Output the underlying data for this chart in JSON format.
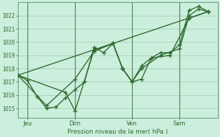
{
  "bg_color": "#cceedd",
  "plot_bg_color": "#cceedd",
  "grid_color": "#99ccaa",
  "line_color": "#2d6a2d",
  "ylim": [
    1014.3,
    1023.0
  ],
  "xlim": [
    0.0,
    10.5
  ],
  "xtick_labels": [
    "Jeu",
    "Dim",
    "Ven",
    "Sam"
  ],
  "xtick_positions": [
    0.5,
    3.0,
    6.0,
    8.5
  ],
  "ytick_labels": [
    "1015",
    "1016",
    "1017",
    "1018",
    "1019",
    "1020",
    "1021",
    "1022"
  ],
  "ytick_values": [
    1015,
    1016,
    1017,
    1018,
    1019,
    1020,
    1021,
    1022
  ],
  "xlabel": "Pression niveau de la mer( hPa )",
  "series": [
    {
      "x": [
        0.0,
        0.5,
        1.0,
        1.5,
        2.0,
        2.5,
        3.0,
        3.5,
        4.0,
        4.5,
        5.0,
        5.5,
        6.0,
        6.5,
        7.0,
        7.5,
        8.0,
        8.5,
        9.0,
        9.5,
        10.0
      ],
      "y": [
        1017.5,
        1017.1,
        1015.9,
        1015.0,
        1015.1,
        1015.8,
        1016.4,
        1017.0,
        1019.6,
        1019.2,
        1019.9,
        1018.0,
        1017.0,
        1017.2,
        1018.8,
        1019.2,
        1019.2,
        1019.8,
        1022.4,
        1022.7,
        1022.3
      ]
    },
    {
      "x": [
        0.0,
        1.5,
        3.0,
        4.0,
        5.0,
        5.5,
        6.0,
        6.5,
        7.5,
        8.5,
        9.0,
        9.5,
        10.0
      ],
      "y": [
        1017.5,
        1015.2,
        1017.2,
        1019.3,
        1019.9,
        1018.0,
        1017.0,
        1018.0,
        1019.0,
        1019.5,
        1022.0,
        1022.5,
        1022.3
      ]
    },
    {
      "x": [
        0.0,
        2.5,
        3.0,
        4.0,
        5.0,
        5.5,
        6.0,
        6.5,
        7.0,
        8.0,
        9.0,
        10.0
      ],
      "y": [
        1017.5,
        1016.2,
        1014.8,
        1019.4,
        1019.9,
        1018.0,
        1017.0,
        1018.2,
        1018.8,
        1019.0,
        1021.8,
        1022.3
      ]
    },
    {
      "x": [
        0.0,
        10.0
      ],
      "y": [
        1017.5,
        1022.3
      ]
    }
  ],
  "vlines": [
    0.5,
    3.0,
    6.0,
    8.5
  ]
}
